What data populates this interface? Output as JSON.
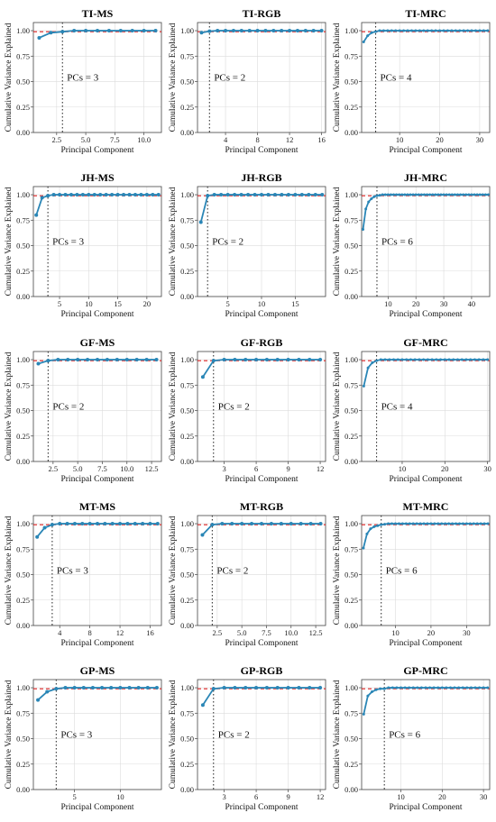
{
  "chart_data": [
    {
      "type": "line",
      "title": "TI-MS",
      "xlabel": "Principal Component",
      "ylabel": "Cumulative Variance Explained",
      "n": 11,
      "xlim": [
        0.5,
        11.5
      ],
      "ylim": [
        0,
        1.0
      ],
      "xticks": [
        2.5,
        5.0,
        7.5,
        10.0
      ],
      "xtick_labels": [
        "2.5",
        "5.0",
        "7.5",
        "10.0"
      ],
      "yticks": [
        0,
        0.25,
        0.5,
        0.75,
        1.0
      ],
      "ytick_labels": [
        "0.00",
        "0.25",
        "0.50",
        "0.75",
        "1.00"
      ],
      "grid": true,
      "threshold_y": 0.99,
      "pcs_selected": 3,
      "annotation": "PCs = 3",
      "y": [
        0.93,
        0.98,
        0.99,
        1.0,
        1.0,
        1.0,
        1.0,
        1.0,
        1.0,
        1.0,
        1.0
      ]
    },
    {
      "type": "line",
      "title": "TI-RGB",
      "xlabel": "Principal Component",
      "ylabel": "Cumulative Variance Explained",
      "n": 16,
      "xlim": [
        0.5,
        16.5
      ],
      "ylim": [
        0,
        1.0
      ],
      "xticks": [
        4,
        8,
        12,
        16
      ],
      "xtick_labels": [
        "4",
        "8",
        "12",
        "16"
      ],
      "yticks": [
        0,
        0.25,
        0.5,
        0.75,
        1.0
      ],
      "ytick_labels": [
        "0.00",
        "0.25",
        "0.50",
        "0.75",
        "1.00"
      ],
      "grid": true,
      "threshold_y": 0.99,
      "pcs_selected": 2,
      "annotation": "PCs = 2",
      "y": [
        0.98,
        0.995,
        1.0,
        1.0,
        1.0,
        1.0,
        1.0,
        1.0,
        1.0,
        1.0,
        1.0,
        1.0,
        1.0,
        1.0,
        1.0,
        1.0
      ]
    },
    {
      "type": "line",
      "title": "TI-MRC",
      "xlabel": "Principal Component",
      "ylabel": "Cumulative Variance Explained",
      "n": 32,
      "xlim": [
        0.5,
        32.5
      ],
      "ylim": [
        0,
        1.0
      ],
      "xticks": [
        10,
        20,
        30
      ],
      "xtick_labels": [
        "10",
        "20",
        "30"
      ],
      "yticks": [
        0,
        0.25,
        0.5,
        0.75,
        1.0
      ],
      "ytick_labels": [
        "0.00",
        "0.25",
        "0.50",
        "0.75",
        "1.00"
      ],
      "grid": true,
      "threshold_y": 0.99,
      "pcs_selected": 4,
      "annotation": "PCs = 4",
      "y": [
        0.89,
        0.95,
        0.98,
        0.99,
        1.0,
        1.0,
        1.0,
        1.0,
        1.0,
        1.0,
        1.0,
        1.0,
        1.0,
        1.0,
        1.0,
        1.0,
        1.0,
        1.0,
        1.0,
        1.0,
        1.0,
        1.0,
        1.0,
        1.0,
        1.0,
        1.0,
        1.0,
        1.0,
        1.0,
        1.0,
        1.0,
        1.0
      ]
    },
    {
      "type": "line",
      "title": "JH-MS",
      "xlabel": "Principal Component",
      "ylabel": "Cumulative Variance Explained",
      "n": 22,
      "xlim": [
        0.5,
        22.5
      ],
      "ylim": [
        0,
        1.0
      ],
      "xticks": [
        5,
        10,
        15,
        20
      ],
      "xtick_labels": [
        "5",
        "10",
        "15",
        "20"
      ],
      "yticks": [
        0,
        0.25,
        0.5,
        0.75,
        1.0
      ],
      "ytick_labels": [
        "0.00",
        "0.25",
        "0.50",
        "0.75",
        "1.00"
      ],
      "grid": true,
      "threshold_y": 0.99,
      "pcs_selected": 3,
      "annotation": "PCs = 3",
      "y": [
        0.8,
        0.97,
        0.99,
        1.0,
        1.0,
        1.0,
        1.0,
        1.0,
        1.0,
        1.0,
        1.0,
        1.0,
        1.0,
        1.0,
        1.0,
        1.0,
        1.0,
        1.0,
        1.0,
        1.0,
        1.0,
        1.0
      ]
    },
    {
      "type": "line",
      "title": "JH-RGB",
      "xlabel": "Principal Component",
      "ylabel": "Cumulative Variance Explained",
      "n": 19,
      "xlim": [
        0.5,
        19.5
      ],
      "ylim": [
        0,
        1.0
      ],
      "xticks": [
        5,
        10,
        15
      ],
      "xtick_labels": [
        "5",
        "10",
        "15"
      ],
      "yticks": [
        0,
        0.25,
        0.5,
        0.75,
        1.0
      ],
      "ytick_labels": [
        "0.00",
        "0.25",
        "0.50",
        "0.75",
        "1.00"
      ],
      "grid": true,
      "threshold_y": 0.99,
      "pcs_selected": 2,
      "annotation": "PCs = 2",
      "y": [
        0.73,
        0.99,
        1.0,
        1.0,
        1.0,
        1.0,
        1.0,
        1.0,
        1.0,
        1.0,
        1.0,
        1.0,
        1.0,
        1.0,
        1.0,
        1.0,
        1.0,
        1.0,
        1.0
      ]
    },
    {
      "type": "line",
      "title": "JH-MRC",
      "xlabel": "Principal Component",
      "ylabel": "Cumulative Variance Explained",
      "n": 46,
      "xlim": [
        0.5,
        46.5
      ],
      "ylim": [
        0,
        1.0
      ],
      "xticks": [
        10,
        20,
        30,
        40
      ],
      "xtick_labels": [
        "10",
        "20",
        "30",
        "40"
      ],
      "yticks": [
        0,
        0.25,
        0.5,
        0.75,
        1.0
      ],
      "ytick_labels": [
        "0.00",
        "0.25",
        "0.50",
        "0.75",
        "1.00"
      ],
      "grid": true,
      "threshold_y": 0.99,
      "pcs_selected": 6,
      "annotation": "PCs = 6",
      "y": [
        0.66,
        0.86,
        0.93,
        0.96,
        0.98,
        0.99,
        0.995,
        1.0,
        1.0,
        1.0,
        1.0,
        1.0,
        1.0,
        1.0,
        1.0,
        1.0,
        1.0,
        1.0,
        1.0,
        1.0,
        1.0,
        1.0,
        1.0,
        1.0,
        1.0,
        1.0,
        1.0,
        1.0,
        1.0,
        1.0,
        1.0,
        1.0,
        1.0,
        1.0,
        1.0,
        1.0,
        1.0,
        1.0,
        1.0,
        1.0,
        1.0,
        1.0,
        1.0,
        1.0,
        1.0,
        1.0
      ]
    },
    {
      "type": "line",
      "title": "GF-MS",
      "xlabel": "Principal Component",
      "ylabel": "Cumulative Variance Explained",
      "n": 13,
      "xlim": [
        0.5,
        13.5
      ],
      "ylim": [
        0,
        1.0
      ],
      "xticks": [
        2.5,
        5.0,
        7.5,
        10.0,
        12.5
      ],
      "xtick_labels": [
        "2.5",
        "5.0",
        "7.5",
        "10.0",
        "12.5"
      ],
      "yticks": [
        0,
        0.25,
        0.5,
        0.75,
        1.0
      ],
      "ytick_labels": [
        "0.00",
        "0.25",
        "0.50",
        "0.75",
        "1.00"
      ],
      "grid": true,
      "threshold_y": 0.99,
      "pcs_selected": 2,
      "annotation": "PCs = 2",
      "y": [
        0.96,
        0.99,
        1.0,
        1.0,
        1.0,
        1.0,
        1.0,
        1.0,
        1.0,
        1.0,
        1.0,
        1.0,
        1.0
      ]
    },
    {
      "type": "line",
      "title": "GF-RGB",
      "xlabel": "Principal Component",
      "ylabel": "Cumulative Variance Explained",
      "n": 12,
      "xlim": [
        0.5,
        12.5
      ],
      "ylim": [
        0,
        1.0
      ],
      "xticks": [
        3,
        6,
        9,
        12
      ],
      "xtick_labels": [
        "3",
        "6",
        "9",
        "12"
      ],
      "yticks": [
        0,
        0.25,
        0.5,
        0.75,
        1.0
      ],
      "ytick_labels": [
        "0.00",
        "0.25",
        "0.50",
        "0.75",
        "1.00"
      ],
      "grid": true,
      "threshold_y": 0.99,
      "pcs_selected": 2,
      "annotation": "PCs = 2",
      "y": [
        0.83,
        0.99,
        1.0,
        1.0,
        1.0,
        1.0,
        1.0,
        1.0,
        1.0,
        1.0,
        1.0,
        1.0
      ]
    },
    {
      "type": "line",
      "title": "GF-MRC",
      "xlabel": "Principal Component",
      "ylabel": "Cumulative Variance Explained",
      "n": 30,
      "xlim": [
        0.5,
        30.5
      ],
      "ylim": [
        0,
        1.0
      ],
      "xticks": [
        10,
        20,
        30
      ],
      "xtick_labels": [
        "10",
        "20",
        "30"
      ],
      "yticks": [
        0,
        0.25,
        0.5,
        0.75,
        1.0
      ],
      "ytick_labels": [
        "0.00",
        "0.25",
        "0.50",
        "0.75",
        "1.00"
      ],
      "grid": true,
      "threshold_y": 0.99,
      "pcs_selected": 4,
      "annotation": "PCs = 4",
      "y": [
        0.74,
        0.92,
        0.97,
        0.99,
        1.0,
        1.0,
        1.0,
        1.0,
        1.0,
        1.0,
        1.0,
        1.0,
        1.0,
        1.0,
        1.0,
        1.0,
        1.0,
        1.0,
        1.0,
        1.0,
        1.0,
        1.0,
        1.0,
        1.0,
        1.0,
        1.0,
        1.0,
        1.0,
        1.0,
        1.0
      ]
    },
    {
      "type": "line",
      "title": "MT-MS",
      "xlabel": "Principal Component",
      "ylabel": "Cumulative Variance Explained",
      "n": 17,
      "xlim": [
        0.5,
        17.5
      ],
      "ylim": [
        0,
        1.0
      ],
      "xticks": [
        4,
        8,
        12,
        16
      ],
      "xtick_labels": [
        "4",
        "8",
        "12",
        "16"
      ],
      "yticks": [
        0,
        0.25,
        0.5,
        0.75,
        1.0
      ],
      "ytick_labels": [
        "0.00",
        "0.25",
        "0.50",
        "0.75",
        "1.00"
      ],
      "grid": true,
      "threshold_y": 0.99,
      "pcs_selected": 3,
      "annotation": "PCs = 3",
      "y": [
        0.87,
        0.96,
        0.99,
        1.0,
        1.0,
        1.0,
        1.0,
        1.0,
        1.0,
        1.0,
        1.0,
        1.0,
        1.0,
        1.0,
        1.0,
        1.0,
        1.0
      ]
    },
    {
      "type": "line",
      "title": "MT-RGB",
      "xlabel": "Principal Component",
      "ylabel": "Cumulative Variance Explained",
      "n": 13,
      "xlim": [
        0.5,
        13.5
      ],
      "ylim": [
        0,
        1.0
      ],
      "xticks": [
        2.5,
        5.0,
        7.5,
        10.0,
        12.5
      ],
      "xtick_labels": [
        "2.5",
        "5.0",
        "7.5",
        "10.0",
        "12.5"
      ],
      "yticks": [
        0,
        0.25,
        0.5,
        0.75,
        1.0
      ],
      "ytick_labels": [
        "0.00",
        "0.25",
        "0.50",
        "0.75",
        "1.00"
      ],
      "grid": true,
      "threshold_y": 0.99,
      "pcs_selected": 2,
      "annotation": "PCs = 2",
      "y": [
        0.89,
        0.99,
        1.0,
        1.0,
        1.0,
        1.0,
        1.0,
        1.0,
        1.0,
        1.0,
        1.0,
        1.0,
        1.0
      ]
    },
    {
      "type": "line",
      "title": "MT-MRC",
      "xlabel": "Principal Component",
      "ylabel": "Cumulative Variance Explained",
      "n": 36,
      "xlim": [
        0.5,
        36.5
      ],
      "ylim": [
        0,
        1.0
      ],
      "xticks": [
        10,
        20,
        30
      ],
      "xtick_labels": [
        "10",
        "20",
        "30"
      ],
      "yticks": [
        0,
        0.25,
        0.5,
        0.75,
        1.0
      ],
      "ytick_labels": [
        "0.00",
        "0.25",
        "0.50",
        "0.75",
        "1.00"
      ],
      "grid": true,
      "threshold_y": 0.99,
      "pcs_selected": 6,
      "annotation": "PCs = 6",
      "y": [
        0.76,
        0.9,
        0.95,
        0.97,
        0.98,
        0.99,
        0.995,
        1.0,
        1.0,
        1.0,
        1.0,
        1.0,
        1.0,
        1.0,
        1.0,
        1.0,
        1.0,
        1.0,
        1.0,
        1.0,
        1.0,
        1.0,
        1.0,
        1.0,
        1.0,
        1.0,
        1.0,
        1.0,
        1.0,
        1.0,
        1.0,
        1.0,
        1.0,
        1.0,
        1.0,
        1.0
      ]
    },
    {
      "type": "line",
      "title": "GP-MS",
      "xlabel": "Principal Component",
      "ylabel": "Cumulative Variance Explained",
      "n": 14,
      "xlim": [
        0.5,
        14.5
      ],
      "ylim": [
        0,
        1.0
      ],
      "xticks": [
        5,
        10
      ],
      "xtick_labels": [
        "5",
        "10"
      ],
      "yticks": [
        0,
        0.25,
        0.5,
        0.75,
        1.0
      ],
      "ytick_labels": [
        "0.00",
        "0.25",
        "0.50",
        "0.75",
        "1.00"
      ],
      "grid": true,
      "threshold_y": 0.99,
      "pcs_selected": 3,
      "annotation": "PCs = 3",
      "y": [
        0.88,
        0.96,
        0.99,
        1.0,
        1.0,
        1.0,
        1.0,
        1.0,
        1.0,
        1.0,
        1.0,
        1.0,
        1.0,
        1.0
      ]
    },
    {
      "type": "line",
      "title": "GP-RGB",
      "xlabel": "Principal Component",
      "ylabel": "Cumulative Variance Explained",
      "n": 12,
      "xlim": [
        0.5,
        12.5
      ],
      "ylim": [
        0,
        1.0
      ],
      "xticks": [
        3,
        6,
        9,
        12
      ],
      "xtick_labels": [
        "3",
        "6",
        "9",
        "12"
      ],
      "yticks": [
        0,
        0.25,
        0.5,
        0.75,
        1.0
      ],
      "ytick_labels": [
        "0.00",
        "0.25",
        "0.50",
        "0.75",
        "1.00"
      ],
      "grid": true,
      "threshold_y": 0.99,
      "pcs_selected": 2,
      "annotation": "PCs = 2",
      "y": [
        0.83,
        0.99,
        1.0,
        1.0,
        1.0,
        1.0,
        1.0,
        1.0,
        1.0,
        1.0,
        1.0,
        1.0
      ]
    },
    {
      "type": "line",
      "title": "GP-MRC",
      "xlabel": "Principal Component",
      "ylabel": "Cumulative Variance Explained",
      "n": 31,
      "xlim": [
        0.5,
        31.5
      ],
      "ylim": [
        0,
        1.0
      ],
      "xticks": [
        10,
        20,
        30
      ],
      "xtick_labels": [
        "10",
        "20",
        "30"
      ],
      "yticks": [
        0,
        0.25,
        0.5,
        0.75,
        1.0
      ],
      "ytick_labels": [
        "0.00",
        "0.25",
        "0.50",
        "0.75",
        "1.00"
      ],
      "grid": true,
      "threshold_y": 0.99,
      "pcs_selected": 6,
      "annotation": "PCs = 6",
      "y": [
        0.74,
        0.92,
        0.96,
        0.98,
        0.99,
        0.99,
        1.0,
        1.0,
        1.0,
        1.0,
        1.0,
        1.0,
        1.0,
        1.0,
        1.0,
        1.0,
        1.0,
        1.0,
        1.0,
        1.0,
        1.0,
        1.0,
        1.0,
        1.0,
        1.0,
        1.0,
        1.0,
        1.0,
        1.0,
        1.0,
        1.0
      ]
    }
  ],
  "colors": {
    "line": "#2a86b6",
    "marker": "#2a86b6",
    "threshold": "#e02424",
    "vline": "#333333",
    "grid": "#dcdcdc",
    "axes": "#444444"
  }
}
